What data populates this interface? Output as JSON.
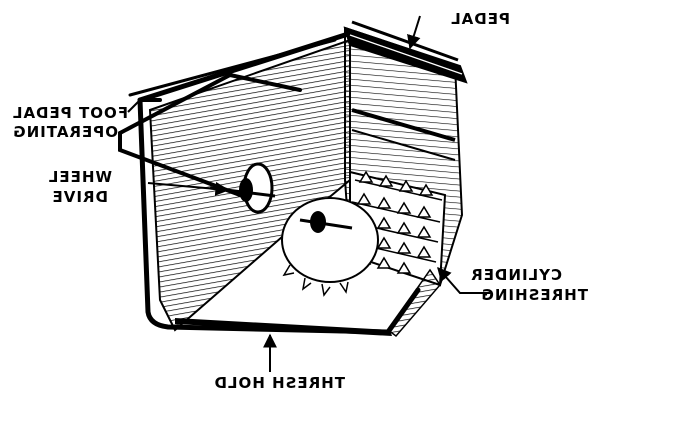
{
  "labels": {
    "pedal": "PEDAL",
    "foot_pedal": "FOOT PEDAL",
    "operating": "OPERATING",
    "wheel": "WHEEL",
    "drive": "DRIVE",
    "cylinder": "CYLINDER",
    "threshing": "THRESHING",
    "thresh_hold": "THRESH HOLD"
  },
  "colors": {
    "ink": "#000000",
    "paper": "#ffffff"
  }
}
